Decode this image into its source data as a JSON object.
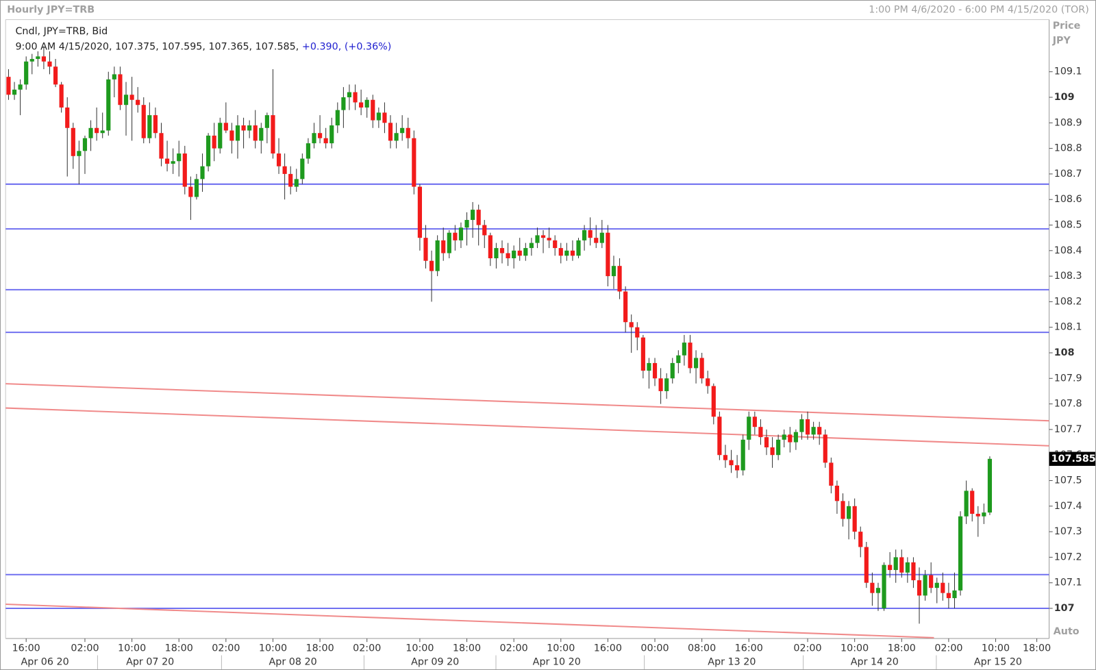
{
  "chart_data": {
    "type": "candlestick",
    "title": "Hourly JPY=TRB",
    "range_label": "1:00 PM 4/6/2020 - 6:00 PM 4/15/2020 (TOR)",
    "y_axis_label": "Price",
    "y_axis_unit": "JPY",
    "scale_mode": "Auto",
    "series_label": "Cndl, JPY=TRB, Bid",
    "info": {
      "ohlc": "9:00 AM 4/15/2020, 107.375, 107.595, 107.365, 107.585,",
      "change": "+0.390,",
      "change_pct": "(+0.36%)"
    },
    "up_color": "#1e9a1e",
    "down_color": "#f21b1b",
    "wick_color": "#333333",
    "ylim": [
      106.882,
      109.304
    ],
    "yticks": [
      109.1,
      109,
      108.9,
      108.8,
      108.7,
      108.6,
      108.5,
      108.4,
      108.3,
      108.2,
      108.1,
      108,
      107.9,
      107.8,
      107.7,
      107.6,
      107.5,
      107.4,
      107.3,
      107.2,
      107.1,
      107
    ],
    "xlim": [
      -0.5,
      177.1
    ],
    "xticks": [
      {
        "value": 3,
        "label": "16:00"
      },
      {
        "value": 13,
        "label": "02:00"
      },
      {
        "value": 21,
        "label": "10:00"
      },
      {
        "value": 29,
        "label": "18:00"
      },
      {
        "value": 37,
        "label": "02:00"
      },
      {
        "value": 45,
        "label": "10:00"
      },
      {
        "value": 53,
        "label": "18:00"
      },
      {
        "value": 61,
        "label": "02:00"
      },
      {
        "value": 70,
        "label": "10:00"
      },
      {
        "value": 78,
        "label": "18:00"
      },
      {
        "value": 86,
        "label": "02:00"
      },
      {
        "value": 94,
        "label": "10:00"
      },
      {
        "value": 102,
        "label": "16:00"
      },
      {
        "value": 110,
        "label": "00:00"
      },
      {
        "value": 118,
        "label": "08:00"
      },
      {
        "value": 126,
        "label": "16:00"
      },
      {
        "value": 136,
        "label": "02:00"
      },
      {
        "value": 144,
        "label": "10:00"
      },
      {
        "value": 152,
        "label": "18:00"
      },
      {
        "value": 160,
        "label": "02:00"
      },
      {
        "value": 168,
        "label": "10:00"
      },
      {
        "value": 175,
        "label": "18:00"
      }
    ],
    "date_labels": [
      {
        "value": 6.2,
        "label": "Apr 06 20"
      },
      {
        "value": 24.1,
        "label": "Apr 07 20"
      },
      {
        "value": 48.4,
        "label": "Apr 08 20"
      },
      {
        "value": 72.6,
        "label": "Apr 09 20"
      },
      {
        "value": 93.3,
        "label": "Apr 10 20"
      },
      {
        "value": 123.1,
        "label": "Apr 13 20"
      },
      {
        "value": 147.4,
        "label": "Apr 14 20"
      },
      {
        "value": 168.4,
        "label": "Apr 15 20"
      }
    ],
    "horizontal_lines": {
      "color": "#7070f0",
      "values": [
        108.66,
        108.485,
        108.247,
        108.08,
        107.132,
        107.0
      ]
    },
    "trend_lines": {
      "color": "#f08a8a",
      "lines": [
        {
          "x": [
            -0.5,
            177.1
          ],
          "y": [
            107.879,
            107.734
          ]
        },
        {
          "x": [
            -0.5,
            177.1
          ],
          "y": [
            107.784,
            107.636
          ]
        },
        {
          "x": [
            -0.5,
            157.5
          ],
          "y": [
            107.016,
            106.885
          ]
        }
      ]
    },
    "candles": [
      [
        109.08,
        109.11,
        108.99,
        109.01
      ],
      [
        109.01,
        109.06,
        108.99,
        109.03
      ],
      [
        109.03,
        109.07,
        108.93,
        109.05
      ],
      [
        109.05,
        109.16,
        109.03,
        109.14
      ],
      [
        109.14,
        109.17,
        109.09,
        109.15
      ],
      [
        109.15,
        109.18,
        109.12,
        109.16
      ],
      [
        109.16,
        109.2,
        109.11,
        109.14
      ],
      [
        109.14,
        109.18,
        109.09,
        109.12
      ],
      [
        109.12,
        109.15,
        109.04,
        109.05
      ],
      [
        109.05,
        109.06,
        108.94,
        108.96
      ],
      [
        108.96,
        109.0,
        108.69,
        108.88
      ],
      [
        108.88,
        108.9,
        108.72,
        108.77
      ],
      [
        108.77,
        108.83,
        108.66,
        108.79
      ],
      [
        108.79,
        108.85,
        108.7,
        108.84
      ],
      [
        108.84,
        108.91,
        108.79,
        108.88
      ],
      [
        108.88,
        108.96,
        108.83,
        108.86
      ],
      [
        108.86,
        108.94,
        108.84,
        108.87
      ],
      [
        108.87,
        109.1,
        108.85,
        109.07
      ],
      [
        109.07,
        109.12,
        109.0,
        109.09
      ],
      [
        109.09,
        109.12,
        108.95,
        108.97
      ],
      [
        108.97,
        109.06,
        108.85,
        109.01
      ],
      [
        109.01,
        109.08,
        108.83,
        108.99
      ],
      [
        108.99,
        109.04,
        108.94,
        108.97
      ],
      [
        108.97,
        109.0,
        108.82,
        108.84
      ],
      [
        108.84,
        108.98,
        108.82,
        108.93
      ],
      [
        108.93,
        108.96,
        108.84,
        108.86
      ],
      [
        108.86,
        108.9,
        108.73,
        108.76
      ],
      [
        108.76,
        108.83,
        108.71,
        108.74
      ],
      [
        108.74,
        108.8,
        108.7,
        108.75
      ],
      [
        108.75,
        108.83,
        108.69,
        108.78
      ],
      [
        108.78,
        108.81,
        108.62,
        108.65
      ],
      [
        108.65,
        108.69,
        108.52,
        108.61
      ],
      [
        108.61,
        108.7,
        108.6,
        108.68
      ],
      [
        108.68,
        108.78,
        108.63,
        108.73
      ],
      [
        108.73,
        108.86,
        108.71,
        108.85
      ],
      [
        108.85,
        108.9,
        108.75,
        108.8
      ],
      [
        108.8,
        108.92,
        108.78,
        108.9
      ],
      [
        108.9,
        108.98,
        108.86,
        108.87
      ],
      [
        108.87,
        108.9,
        108.78,
        108.83
      ],
      [
        108.83,
        108.93,
        108.76,
        108.89
      ],
      [
        108.89,
        108.92,
        108.8,
        108.87
      ],
      [
        108.87,
        108.91,
        108.84,
        108.89
      ],
      [
        108.89,
        108.95,
        108.8,
        108.83
      ],
      [
        108.83,
        108.9,
        108.78,
        108.88
      ],
      [
        108.88,
        108.94,
        108.82,
        108.93
      ],
      [
        108.93,
        109.11,
        108.76,
        108.78
      ],
      [
        108.78,
        108.84,
        108.7,
        108.73
      ],
      [
        108.73,
        108.78,
        108.6,
        108.7
      ],
      [
        108.7,
        108.73,
        108.62,
        108.65
      ],
      [
        108.65,
        108.72,
        108.63,
        108.68
      ],
      [
        108.68,
        108.78,
        108.66,
        108.76
      ],
      [
        108.76,
        108.84,
        108.74,
        108.82
      ],
      [
        108.82,
        108.9,
        108.8,
        108.86
      ],
      [
        108.86,
        108.93,
        108.82,
        108.84
      ],
      [
        108.84,
        108.88,
        108.8,
        108.82
      ],
      [
        108.82,
        108.92,
        108.8,
        108.89
      ],
      [
        108.89,
        108.98,
        108.86,
        108.95
      ],
      [
        108.95,
        109.04,
        108.88,
        109.0
      ],
      [
        109.0,
        109.05,
        108.95,
        109.02
      ],
      [
        109.02,
        109.05,
        108.95,
        108.98
      ],
      [
        108.98,
        109.03,
        108.93,
        108.96
      ],
      [
        108.96,
        109.0,
        108.92,
        108.99
      ],
      [
        108.99,
        109.01,
        108.88,
        108.91
      ],
      [
        108.91,
        108.96,
        108.88,
        108.94
      ],
      [
        108.94,
        108.98,
        108.86,
        108.9
      ],
      [
        108.9,
        108.93,
        108.8,
        108.83
      ],
      [
        108.83,
        108.9,
        108.8,
        108.86
      ],
      [
        108.86,
        108.93,
        108.83,
        108.88
      ],
      [
        108.88,
        108.92,
        108.8,
        108.84
      ],
      [
        108.84,
        108.87,
        108.62,
        108.65
      ],
      [
        108.65,
        108.66,
        108.4,
        108.45
      ],
      [
        108.45,
        108.5,
        108.33,
        108.36
      ],
      [
        108.36,
        108.4,
        108.2,
        108.32
      ],
      [
        108.32,
        108.46,
        108.3,
        108.44
      ],
      [
        108.44,
        108.49,
        108.36,
        108.39
      ],
      [
        108.39,
        108.48,
        108.37,
        108.47
      ],
      [
        108.47,
        108.5,
        108.4,
        108.44
      ],
      [
        108.44,
        108.51,
        108.41,
        108.49
      ],
      [
        108.49,
        108.55,
        108.42,
        108.52
      ],
      [
        108.52,
        108.59,
        108.45,
        108.56
      ],
      [
        108.56,
        108.58,
        108.42,
        108.5
      ],
      [
        108.5,
        108.52,
        108.41,
        108.46
      ],
      [
        108.46,
        108.47,
        108.34,
        108.37
      ],
      [
        108.37,
        108.43,
        108.33,
        108.41
      ],
      [
        108.41,
        108.44,
        108.35,
        108.39
      ],
      [
        108.39,
        108.43,
        108.34,
        108.37
      ],
      [
        108.37,
        108.42,
        108.33,
        108.4
      ],
      [
        108.4,
        108.45,
        108.36,
        108.38
      ],
      [
        108.38,
        108.43,
        108.36,
        108.41
      ],
      [
        108.41,
        108.45,
        108.38,
        108.43
      ],
      [
        108.43,
        108.49,
        108.41,
        108.46
      ],
      [
        108.46,
        108.48,
        108.39,
        108.45
      ],
      [
        108.45,
        108.49,
        108.41,
        108.44
      ],
      [
        108.44,
        108.46,
        108.38,
        108.41
      ],
      [
        108.41,
        108.43,
        108.35,
        108.38
      ],
      [
        108.38,
        108.43,
        108.36,
        108.4
      ],
      [
        108.4,
        108.44,
        108.36,
        108.38
      ],
      [
        108.38,
        108.45,
        108.37,
        108.44
      ],
      [
        108.44,
        108.5,
        108.4,
        108.48
      ],
      [
        108.48,
        108.53,
        108.42,
        108.45
      ],
      [
        108.45,
        108.5,
        108.41,
        108.43
      ],
      [
        108.43,
        108.52,
        108.41,
        108.47
      ],
      [
        108.47,
        108.5,
        108.26,
        108.3
      ],
      [
        108.3,
        108.38,
        108.25,
        108.34
      ],
      [
        108.34,
        108.37,
        108.21,
        108.24
      ],
      [
        108.24,
        108.26,
        108.08,
        108.12
      ],
      [
        108.12,
        108.15,
        108.0,
        108.1
      ],
      [
        108.1,
        108.12,
        108.01,
        108.06
      ],
      [
        108.06,
        108.07,
        107.9,
        107.93
      ],
      [
        107.93,
        107.98,
        107.86,
        107.96
      ],
      [
        107.96,
        107.98,
        107.87,
        107.9
      ],
      [
        107.9,
        107.94,
        107.8,
        107.85
      ],
      [
        107.85,
        107.92,
        107.82,
        107.9
      ],
      [
        107.9,
        107.98,
        107.88,
        107.96
      ],
      [
        107.96,
        108.01,
        107.92,
        107.99
      ],
      [
        107.99,
        108.07,
        107.95,
        108.04
      ],
      [
        108.04,
        108.07,
        107.92,
        107.94
      ],
      [
        107.94,
        108.01,
        107.88,
        107.98
      ],
      [
        107.98,
        108.0,
        107.88,
        107.9
      ],
      [
        107.9,
        107.93,
        107.84,
        107.87
      ],
      [
        107.87,
        107.88,
        107.72,
        107.75
      ],
      [
        107.75,
        107.77,
        107.58,
        107.6
      ],
      [
        107.6,
        107.64,
        107.55,
        107.58
      ],
      [
        107.58,
        107.62,
        107.53,
        107.56
      ],
      [
        107.56,
        107.6,
        107.51,
        107.54
      ],
      [
        107.54,
        107.68,
        107.52,
        107.66
      ],
      [
        107.66,
        107.77,
        107.62,
        107.75
      ],
      [
        107.75,
        107.77,
        107.68,
        107.71
      ],
      [
        107.71,
        107.74,
        107.64,
        107.67
      ],
      [
        107.67,
        107.7,
        107.6,
        107.63
      ],
      [
        107.63,
        107.67,
        107.55,
        107.6
      ],
      [
        107.6,
        107.68,
        107.58,
        107.66
      ],
      [
        107.66,
        107.7,
        107.63,
        107.68
      ],
      [
        107.68,
        107.71,
        107.61,
        107.65
      ],
      [
        107.65,
        107.7,
        107.62,
        107.69
      ],
      [
        107.69,
        107.76,
        107.66,
        107.74
      ],
      [
        107.74,
        107.77,
        107.66,
        107.68
      ],
      [
        107.68,
        107.73,
        107.66,
        107.71
      ],
      [
        107.71,
        107.73,
        107.64,
        107.68
      ],
      [
        107.68,
        107.7,
        107.55,
        107.57
      ],
      [
        107.57,
        107.59,
        107.45,
        107.48
      ],
      [
        107.48,
        107.5,
        107.37,
        107.42
      ],
      [
        107.42,
        107.45,
        107.32,
        107.35
      ],
      [
        107.35,
        107.42,
        107.27,
        107.4
      ],
      [
        107.4,
        107.43,
        107.27,
        107.3
      ],
      [
        107.3,
        107.32,
        107.2,
        107.24
      ],
      [
        107.24,
        107.26,
        107.08,
        107.1
      ],
      [
        107.1,
        107.14,
        107.01,
        107.06
      ],
      [
        107.06,
        107.1,
        106.99,
        107.08
      ],
      [
        107.0,
        107.18,
        106.99,
        107.17
      ],
      [
        107.17,
        107.22,
        107.12,
        107.15
      ],
      [
        107.15,
        107.23,
        107.1,
        107.2
      ],
      [
        107.2,
        107.23,
        107.12,
        107.14
      ],
      [
        107.14,
        107.2,
        107.1,
        107.18
      ],
      [
        107.18,
        107.2,
        107.08,
        107.11
      ],
      [
        107.11,
        107.16,
        106.94,
        107.05
      ],
      [
        107.05,
        107.15,
        107.03,
        107.13
      ],
      [
        107.13,
        107.18,
        107.06,
        107.08
      ],
      [
        107.08,
        107.12,
        107.02,
        107.1
      ],
      [
        107.1,
        107.14,
        107.03,
        107.06
      ],
      [
        107.06,
        107.1,
        107.0,
        107.04
      ],
      [
        107.04,
        107.14,
        107.0,
        107.07
      ],
      [
        107.07,
        107.38,
        107.05,
        107.36
      ],
      [
        107.36,
        107.5,
        107.33,
        107.46
      ],
      [
        107.46,
        107.47,
        107.34,
        107.37
      ],
      [
        107.37,
        107.4,
        107.28,
        107.36
      ],
      [
        107.36,
        107.41,
        107.33,
        107.375
      ],
      [
        107.375,
        107.595,
        107.365,
        107.585
      ]
    ]
  }
}
